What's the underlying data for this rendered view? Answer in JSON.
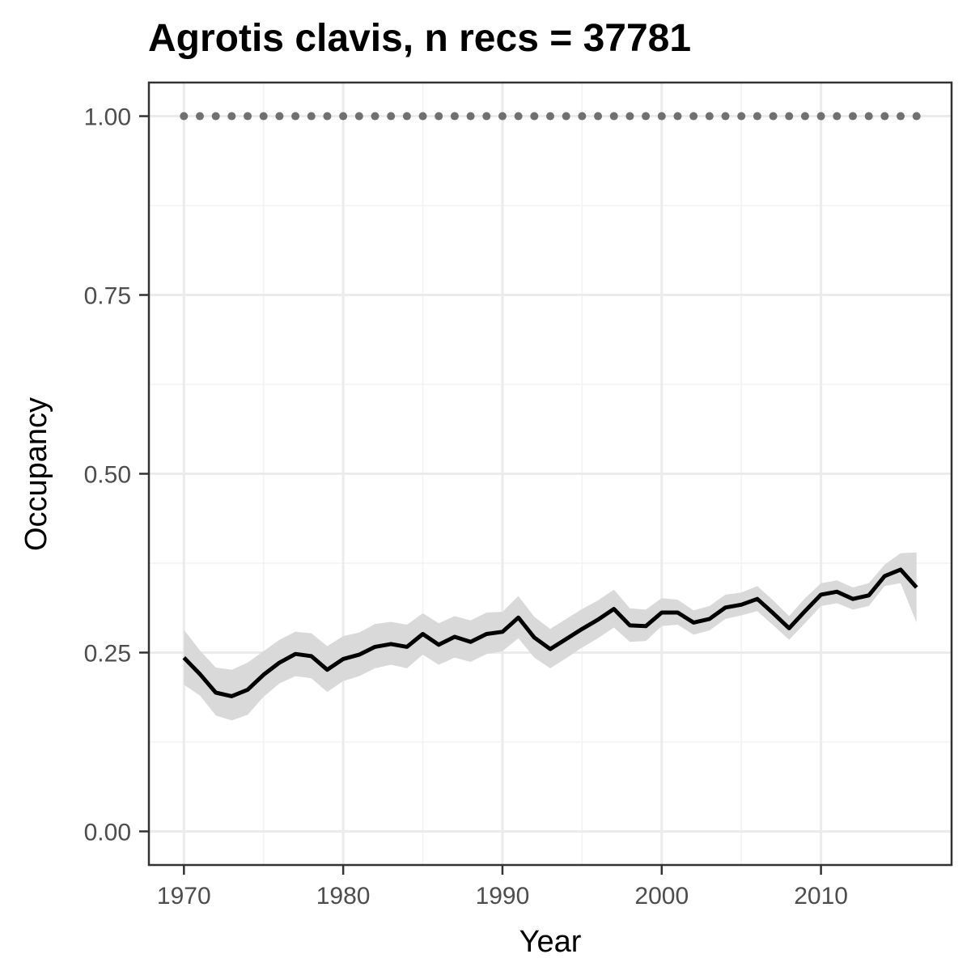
{
  "chart_data": {
    "type": "line",
    "title": "Agrotis clavis, n recs = 37781",
    "xlabel": "Year",
    "ylabel": "Occupancy",
    "xlim": [
      1967.8,
      2018.2
    ],
    "ylim": [
      -0.047,
      1.047
    ],
    "x_ticks": [
      1970,
      1980,
      1990,
      2000,
      2010
    ],
    "x_tick_labels": [
      "1970",
      "1980",
      "1990",
      "2000",
      "2010"
    ],
    "y_ticks": [
      0,
      0.25,
      0.5,
      0.75,
      1.0
    ],
    "y_tick_labels": [
      "0.00",
      "0.25",
      "0.50",
      "0.75",
      "1.00"
    ],
    "grid": true,
    "colors": {
      "line": "#000000",
      "ribbon": "#d9d9d9",
      "dots": "#707070",
      "panel_border": "#333333",
      "grid_major": "#ebebeb",
      "grid_minor": "#f2f2f2"
    },
    "series": [
      {
        "type": "line",
        "x": [
          1970,
          1971,
          1972,
          1973,
          1974,
          1975,
          1976,
          1977,
          1978,
          1979,
          1980,
          1981,
          1982,
          1983,
          1984,
          1985,
          1986,
          1987,
          1988,
          1989,
          1990,
          1991,
          1992,
          1993,
          1994,
          1995,
          1996,
          1997,
          1998,
          1999,
          2000,
          2001,
          2002,
          2003,
          2004,
          2005,
          2006,
          2007,
          2008,
          2009,
          2010,
          2011,
          2012,
          2013,
          2014,
          2015,
          2016
        ],
        "y": [
          0.243,
          0.22,
          0.194,
          0.189,
          0.198,
          0.219,
          0.236,
          0.248,
          0.245,
          0.226,
          0.241,
          0.247,
          0.258,
          0.262,
          0.258,
          0.276,
          0.261,
          0.272,
          0.265,
          0.276,
          0.279,
          0.299,
          0.271,
          0.255,
          0.269,
          0.283,
          0.296,
          0.311,
          0.288,
          0.287,
          0.306,
          0.306,
          0.292,
          0.297,
          0.313,
          0.317,
          0.325,
          0.305,
          0.284,
          0.308,
          0.331,
          0.335,
          0.325,
          0.33,
          0.357,
          0.366,
          0.341
        ],
        "lower": [
          0.205,
          0.19,
          0.162,
          0.155,
          0.163,
          0.188,
          0.207,
          0.217,
          0.214,
          0.195,
          0.21,
          0.217,
          0.228,
          0.233,
          0.228,
          0.247,
          0.233,
          0.243,
          0.237,
          0.248,
          0.252,
          0.27,
          0.243,
          0.228,
          0.242,
          0.257,
          0.27,
          0.285,
          0.265,
          0.266,
          0.287,
          0.289,
          0.275,
          0.281,
          0.297,
          0.302,
          0.308,
          0.288,
          0.268,
          0.291,
          0.315,
          0.319,
          0.31,
          0.315,
          0.343,
          0.347,
          0.292
        ],
        "upper": [
          0.282,
          0.253,
          0.229,
          0.226,
          0.236,
          0.252,
          0.268,
          0.279,
          0.277,
          0.259,
          0.273,
          0.278,
          0.29,
          0.293,
          0.289,
          0.305,
          0.291,
          0.301,
          0.295,
          0.306,
          0.307,
          0.329,
          0.3,
          0.283,
          0.297,
          0.311,
          0.323,
          0.338,
          0.312,
          0.31,
          0.326,
          0.324,
          0.309,
          0.315,
          0.331,
          0.334,
          0.343,
          0.323,
          0.301,
          0.326,
          0.347,
          0.351,
          0.341,
          0.347,
          0.373,
          0.389,
          0.39
        ]
      },
      {
        "type": "points",
        "x": [
          1970,
          1971,
          1972,
          1973,
          1974,
          1975,
          1976,
          1977,
          1978,
          1979,
          1980,
          1981,
          1982,
          1983,
          1984,
          1985,
          1986,
          1987,
          1988,
          1989,
          1990,
          1991,
          1992,
          1993,
          1994,
          1995,
          1996,
          1997,
          1998,
          1999,
          2000,
          2001,
          2002,
          2003,
          2004,
          2005,
          2006,
          2007,
          2008,
          2009,
          2010,
          2011,
          2012,
          2013,
          2014,
          2015,
          2016
        ],
        "y_constant": 1.0
      }
    ]
  }
}
